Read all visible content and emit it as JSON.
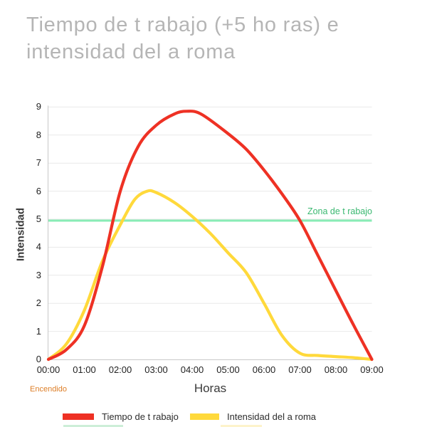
{
  "title": {
    "text": "Tiempo de t rabajo (+5 ho ras) e\nintensidad del a roma"
  },
  "chart_data": {
    "type": "line",
    "title": "Tiempo de t rabajo (+5 ho ras) e intensidad del a roma",
    "xlabel": "Horas",
    "ylabel": "Intensidad",
    "x_tick_labels": [
      "00:00",
      "01:00",
      "02:00",
      "03:00",
      "04:00",
      "05:00",
      "06:00",
      "07:00",
      "08:00",
      "09:00"
    ],
    "y_tick_labels": [
      0,
      1,
      2,
      3,
      4,
      5,
      6,
      7,
      8,
      9
    ],
    "x_range_hours": [
      0,
      9
    ],
    "y_range": [
      0,
      9
    ],
    "grid": true,
    "legend_position": "bottom",
    "series": [
      {
        "name": "Tiempo de t rabajo",
        "color": "#ee3124",
        "x_hours": [
          0,
          0.5,
          1,
          1.5,
          2,
          2.5,
          3,
          3.5,
          3.85,
          4.25,
          5,
          5.5,
          6,
          6.5,
          7,
          7.5,
          8,
          8.5,
          9
        ],
        "values": [
          0,
          0.35,
          1.2,
          3.3,
          6.0,
          7.6,
          8.35,
          8.75,
          8.85,
          8.75,
          8.05,
          7.5,
          6.75,
          5.9,
          4.95,
          3.7,
          2.45,
          1.2,
          0
        ]
      },
      {
        "name": "Intensidad del a roma",
        "color": "#ffd93b",
        "x_hours": [
          0,
          0.5,
          1,
          1.5,
          2,
          2.4,
          2.75,
          3,
          3.5,
          4,
          4.5,
          5,
          5.5,
          6,
          6.5,
          7,
          7.5,
          8,
          8.5,
          9
        ],
        "values": [
          0,
          0.55,
          1.75,
          3.5,
          4.8,
          5.7,
          6.0,
          5.95,
          5.6,
          5.1,
          4.5,
          3.8,
          3.1,
          2.0,
          0.85,
          0.22,
          0.14,
          0.1,
          0.06,
          0
        ]
      }
    ],
    "reference_line": {
      "label": "Zona de t rabajo",
      "value": 4.95,
      "line_color": "#89ecb6",
      "label_color": "#3ab871"
    }
  },
  "axis": {
    "x_label": "Horas",
    "y_label": "Intensidad",
    "origin_annotation": "Encendido",
    "origin_annotation_color": "#dd7e27"
  },
  "legend": {
    "items": [
      {
        "label": "Tiempo de t rabajo",
        "color": "#ee3124"
      },
      {
        "label": "Intensidad del a roma",
        "color": "#ffd93b"
      }
    ],
    "cropped_second_row": [
      {
        "color": "#cdeed8"
      },
      {
        "color": "#fdf3cb"
      }
    ]
  },
  "colors": {
    "title": "#b5b5b5",
    "grid": "#e9e9e9",
    "axis_line": "#c9c9c9",
    "tick_text": "#222222"
  }
}
